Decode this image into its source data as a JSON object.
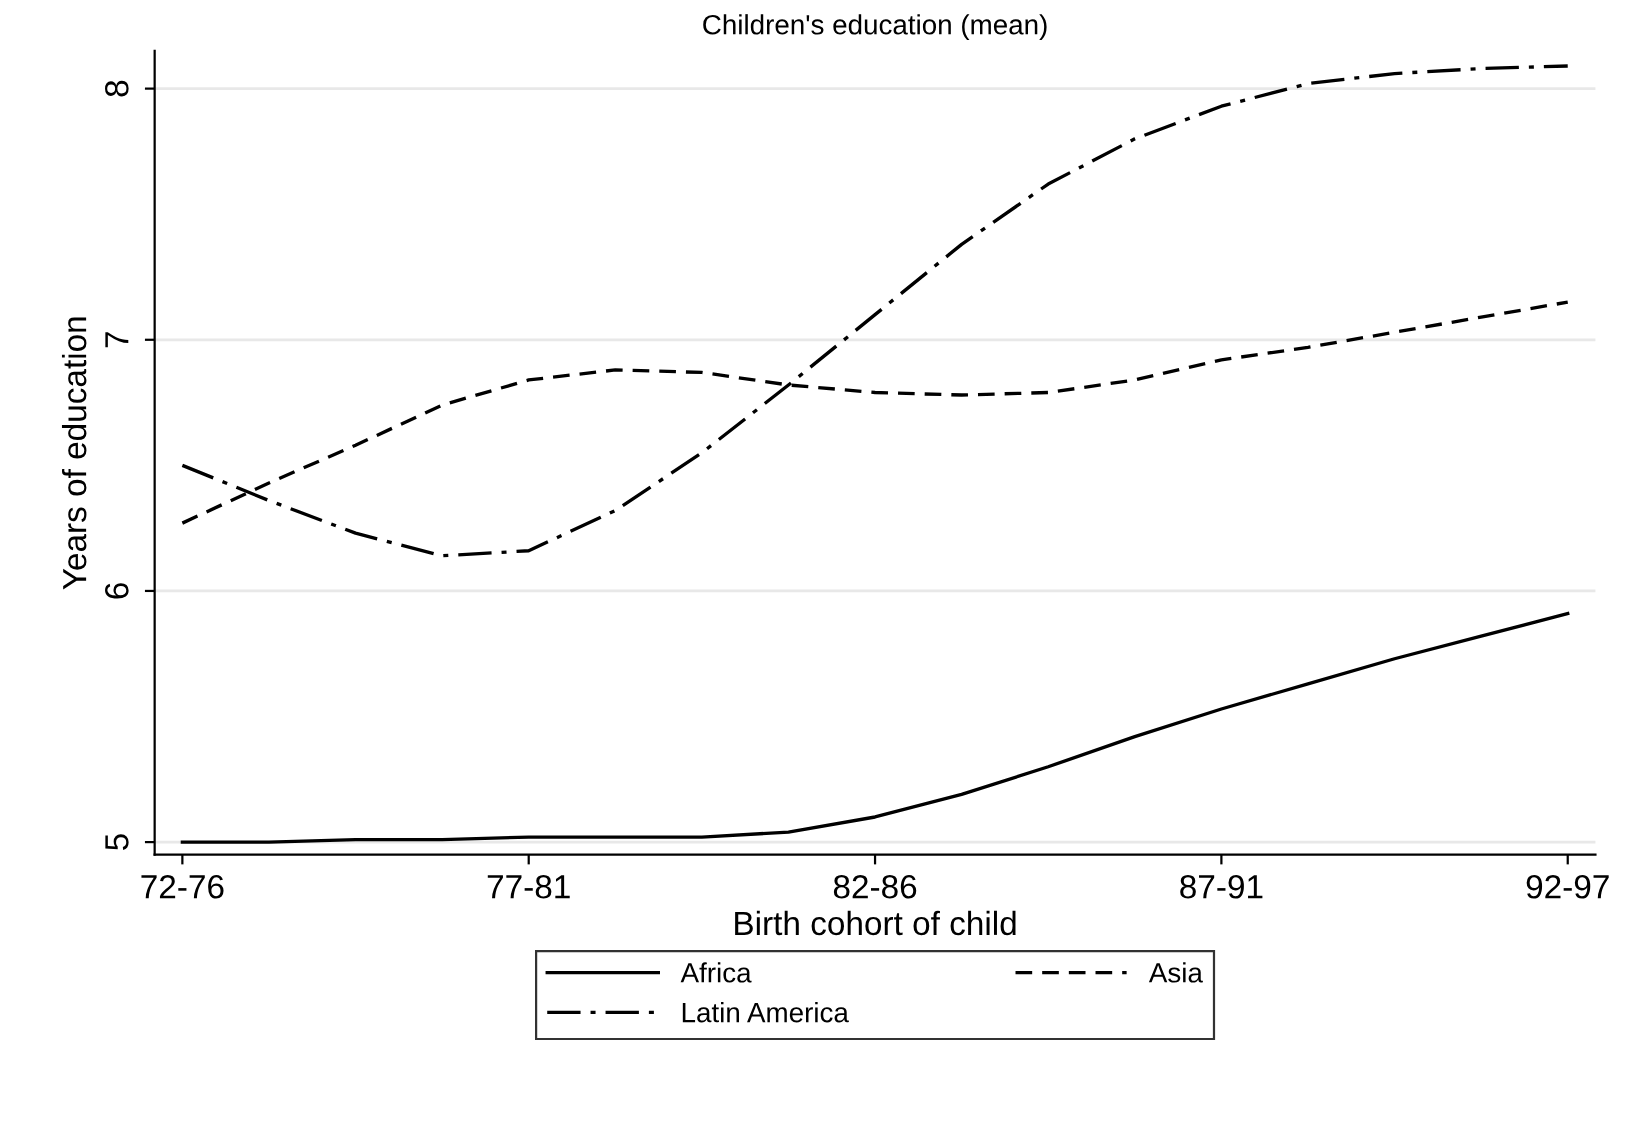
{
  "chart_data": {
    "type": "line",
    "title": "Children's education (mean)",
    "xlabel": "Birth cohort of child",
    "ylabel": "Years of education",
    "categories": [
      "72-76",
      null,
      null,
      null,
      "77-81",
      null,
      null,
      null,
      "82-86",
      null,
      null,
      null,
      "87-91",
      null,
      null,
      null,
      "92-97"
    ],
    "ylim": [
      4.95,
      8.15
    ],
    "yticks": [
      5,
      6,
      7,
      8
    ],
    "grid": "y",
    "legend": "bottom",
    "marker": "none",
    "series": [
      {
        "name": "Africa",
        "color": "#000000",
        "line_style": "solid",
        "values": [
          5.0,
          5.0,
          5.01,
          5.01,
          5.02,
          5.02,
          5.02,
          5.04,
          5.1,
          5.19,
          5.3,
          5.42,
          5.53,
          5.63,
          5.73,
          5.82,
          5.91
        ]
      },
      {
        "name": "Asia",
        "color": "#000000",
        "line_style": "dashed",
        "values": [
          6.27,
          6.43,
          6.58,
          6.74,
          6.84,
          6.88,
          6.87,
          6.82,
          6.79,
          6.78,
          6.79,
          6.84,
          6.92,
          6.97,
          7.03,
          7.09,
          7.15
        ]
      },
      {
        "name": "Latin America",
        "color": "#000000",
        "line_style": "dashdot",
        "values": [
          6.5,
          6.36,
          6.23,
          6.14,
          6.16,
          6.32,
          6.55,
          6.82,
          7.1,
          7.38,
          7.62,
          7.8,
          7.93,
          8.02,
          8.06,
          8.08,
          8.09
        ]
      }
    ]
  }
}
